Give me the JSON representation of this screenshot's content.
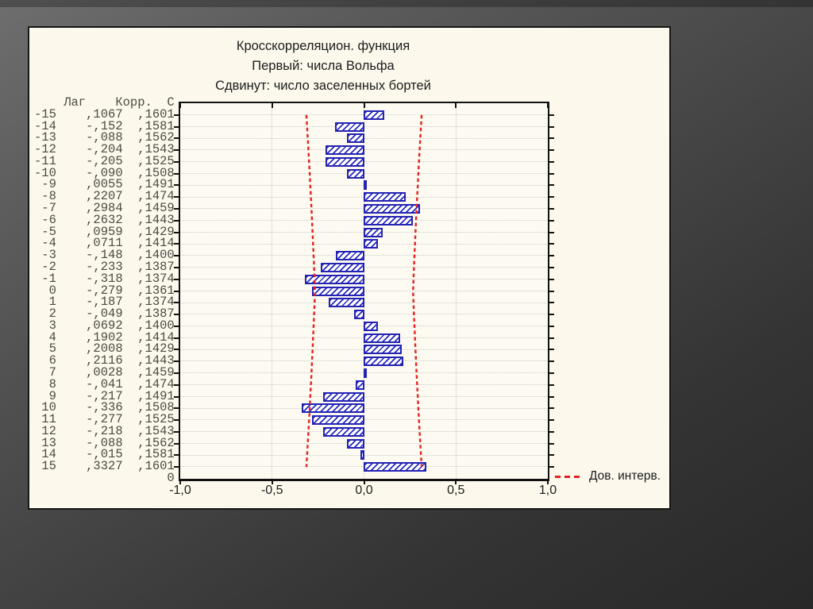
{
  "chart_data": {
    "type": "bar",
    "orientation": "horizontal",
    "title": "Кросскорреляцион. функция",
    "subtitle_first": "Первый: числа Вольфа",
    "subtitle_lagged": "Сдвинут: число заселенных бортей",
    "table_header": {
      "lag": "Лаг",
      "corr": "Корр.",
      "se": "С"
    },
    "rows": [
      {
        "lag": -15,
        "corr_label": ",1067",
        "corr": 0.1067,
        "se_label": ",1601",
        "se": 0.1601
      },
      {
        "lag": -14,
        "corr_label": "-,152",
        "corr": -0.152,
        "se_label": ",1581",
        "se": 0.1581
      },
      {
        "lag": -13,
        "corr_label": "-,088",
        "corr": -0.088,
        "se_label": ",1562",
        "se": 0.1562
      },
      {
        "lag": -12,
        "corr_label": "-,204",
        "corr": -0.204,
        "se_label": ",1543",
        "se": 0.1543
      },
      {
        "lag": -11,
        "corr_label": "-,205",
        "corr": -0.205,
        "se_label": ",1525",
        "se": 0.1525
      },
      {
        "lag": -10,
        "corr_label": "-,090",
        "corr": -0.09,
        "se_label": ",1508",
        "se": 0.1508
      },
      {
        "lag": -9,
        "corr_label": ",0055",
        "corr": 0.0055,
        "se_label": ",1491",
        "se": 0.1491
      },
      {
        "lag": -8,
        "corr_label": ",2207",
        "corr": 0.2207,
        "se_label": ",1474",
        "se": 0.1474
      },
      {
        "lag": -7,
        "corr_label": ",2984",
        "corr": 0.2984,
        "se_label": ",1459",
        "se": 0.1459
      },
      {
        "lag": -6,
        "corr_label": ",2632",
        "corr": 0.2632,
        "se_label": ",1443",
        "se": 0.1443
      },
      {
        "lag": -5,
        "corr_label": ",0959",
        "corr": 0.0959,
        "se_label": ",1429",
        "se": 0.1429
      },
      {
        "lag": -4,
        "corr_label": ",0711",
        "corr": 0.0711,
        "se_label": ",1414",
        "se": 0.1414
      },
      {
        "lag": -3,
        "corr_label": "-,148",
        "corr": -0.148,
        "se_label": ",1400",
        "se": 0.14
      },
      {
        "lag": -2,
        "corr_label": "-,233",
        "corr": -0.233,
        "se_label": ",1387",
        "se": 0.1387
      },
      {
        "lag": -1,
        "corr_label": "-,318",
        "corr": -0.318,
        "se_label": ",1374",
        "se": 0.1374
      },
      {
        "lag": 0,
        "corr_label": "-,279",
        "corr": -0.279,
        "se_label": ",1361",
        "se": 0.1361
      },
      {
        "lag": 1,
        "corr_label": "-,187",
        "corr": -0.187,
        "se_label": ",1374",
        "se": 0.1374
      },
      {
        "lag": 2,
        "corr_label": "-,049",
        "corr": -0.049,
        "se_label": ",1387",
        "se": 0.1387
      },
      {
        "lag": 3,
        "corr_label": ",0692",
        "corr": 0.0692,
        "se_label": ",1400",
        "se": 0.14
      },
      {
        "lag": 4,
        "corr_label": ",1902",
        "corr": 0.1902,
        "se_label": ",1414",
        "se": 0.1414
      },
      {
        "lag": 5,
        "corr_label": ",2008",
        "corr": 0.2008,
        "se_label": ",1429",
        "se": 0.1429
      },
      {
        "lag": 6,
        "corr_label": ",2116",
        "corr": 0.2116,
        "se_label": ",1443",
        "se": 0.1443
      },
      {
        "lag": 7,
        "corr_label": ",0028",
        "corr": 0.0028,
        "se_label": ",1459",
        "se": 0.1459
      },
      {
        "lag": 8,
        "corr_label": "-,041",
        "corr": -0.041,
        "se_label": ",1474",
        "se": 0.1474
      },
      {
        "lag": 9,
        "corr_label": "-,217",
        "corr": -0.217,
        "se_label": ",1491",
        "se": 0.1491
      },
      {
        "lag": 10,
        "corr_label": "-,336",
        "corr": -0.336,
        "se_label": ",1508",
        "se": 0.1508
      },
      {
        "lag": 11,
        "corr_label": "-,277",
        "corr": -0.277,
        "se_label": ",1525",
        "se": 0.1525
      },
      {
        "lag": 12,
        "corr_label": "-,218",
        "corr": -0.218,
        "se_label": ",1543",
        "se": 0.1543
      },
      {
        "lag": 13,
        "corr_label": "-,088",
        "corr": -0.088,
        "se_label": ",1562",
        "se": 0.1562
      },
      {
        "lag": 14,
        "corr_label": "-,015",
        "corr": -0.015,
        "se_label": ",1581",
        "se": 0.1581
      },
      {
        "lag": 15,
        "corr_label": ",3327",
        "corr": 0.3327,
        "se_label": ",1601",
        "se": 0.1601
      }
    ],
    "baseline_label": "0",
    "xlim": [
      -1,
      1
    ],
    "x_ticks": [
      {
        "value": -1,
        "label": "-1,0"
      },
      {
        "value": -0.5,
        "label": "-0,5"
      },
      {
        "value": 0,
        "label": "0,0"
      },
      {
        "value": 0.5,
        "label": "0,5"
      },
      {
        "value": 1,
        "label": "1,0"
      }
    ],
    "grid_x_values": [
      -0.5,
      0,
      0.5
    ],
    "confidence_multiplier": 1.96,
    "legend": "Дов. интерв.",
    "legend_position": "bottom-right-outside",
    "grid": "dotted",
    "colors": {
      "bar": "#2323b4",
      "confidence_line": "#e32222",
      "gridline": "#c9c9c9",
      "panel_background": "#fcf9ec",
      "slide_background": "#3a3a3a",
      "axis": "#111111"
    }
  }
}
